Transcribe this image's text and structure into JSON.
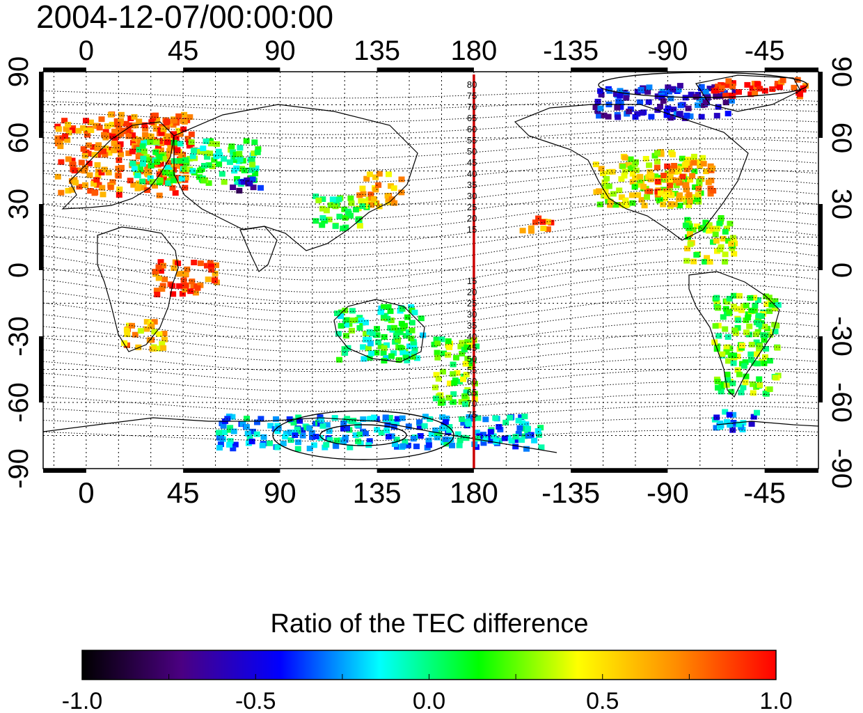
{
  "timestamp": "2004-12-07/00:00:00",
  "map": {
    "x_ticks_top": [
      "0",
      "45",
      "90",
      "135",
      "180",
      "-135",
      "-90",
      "-45"
    ],
    "x_ticks_bottom": [
      "0",
      "45",
      "90",
      "135",
      "180",
      "-135",
      "-90",
      "-45"
    ],
    "y_ticks_left": [
      "90",
      "60",
      "30",
      "0",
      "-30",
      "-60",
      "-90"
    ],
    "y_ticks_right": [
      "90",
      "60",
      "30",
      "0",
      "-30",
      "-60",
      "-90"
    ],
    "meridian_labels_north": [
      "80",
      "75",
      "70",
      "65",
      "60",
      "55",
      "50",
      "45",
      "40",
      "35",
      "30",
      "25",
      "20",
      "15"
    ],
    "meridian_labels_south": [
      "15",
      "20",
      "25",
      "30",
      "35",
      "40",
      "45",
      "50",
      "55",
      "60",
      "65",
      "70",
      "75"
    ],
    "reference_meridian_color": "#cc0000",
    "reference_meridian_lon": 180
  },
  "colorbar": {
    "title": "Ratio of the TEC difference",
    "tick_labels": [
      "-1.0",
      "-0.5",
      "0.0",
      "0.5",
      "1.0"
    ],
    "range": [
      -1.0,
      1.0
    ],
    "colors": [
      "#000000",
      "#4b0082",
      "#0000ff",
      "#00ffff",
      "#00ff00",
      "#ffff00",
      "#ff8c00",
      "#ff0000"
    ]
  },
  "chart_data": {
    "type": "heatmap",
    "x_range": [
      -20,
      340
    ],
    "y_range": [
      -90,
      90
    ],
    "x_tick_values": [
      0,
      45,
      90,
      135,
      180,
      225,
      270,
      315
    ],
    "y_tick_values": [
      90,
      60,
      30,
      0,
      -30,
      -60,
      -90
    ],
    "grid": true,
    "value_range": [
      -1.0,
      1.0
    ],
    "regions": [
      {
        "lon": [
          -15,
          45
        ],
        "lat": [
          35,
          70
        ],
        "value": 0.75
      },
      {
        "lon": [
          10,
          50
        ],
        "lat": [
          55,
          72
        ],
        "value": 0.85
      },
      {
        "lon": [
          20,
          80
        ],
        "lat": [
          40,
          60
        ],
        "value": 0.1
      },
      {
        "lon": [
          65,
          80
        ],
        "lat": [
          37,
          43
        ],
        "value": -0.6
      },
      {
        "lon": [
          125,
          145
        ],
        "lat": [
          30,
          45
        ],
        "value": 0.6
      },
      {
        "lon": [
          105,
          130
        ],
        "lat": [
          20,
          35
        ],
        "value": 0.15
      },
      {
        "lon": [
          15,
          35
        ],
        "lat": [
          -35,
          -22
        ],
        "value": 0.6
      },
      {
        "lon": [
          30,
          60
        ],
        "lat": [
          -10,
          5
        ],
        "value": 0.85
      },
      {
        "lon": [
          115,
          155
        ],
        "lat": [
          -40,
          -15
        ],
        "value": 0.05
      },
      {
        "lon": [
          160,
          180
        ],
        "lat": [
          -60,
          -30
        ],
        "value": 0.2
      },
      {
        "lon": [
          235,
          285
        ],
        "lat": [
          30,
          55
        ],
        "value": 0.4
      },
      {
        "lon": [
          255,
          290
        ],
        "lat": [
          35,
          50
        ],
        "value": 0.7
      },
      {
        "lon": [
          235,
          300
        ],
        "lat": [
          70,
          85
        ],
        "value": -0.5
      },
      {
        "lon": [
          290,
          335
        ],
        "lat": [
          80,
          88
        ],
        "value": 0.9
      },
      {
        "lon": [
          200,
          215
        ],
        "lat": [
          18,
          25
        ],
        "value": 0.75
      },
      {
        "lon": [
          275,
          300
        ],
        "lat": [
          5,
          25
        ],
        "value": 0.3
      },
      {
        "lon": [
          290,
          320
        ],
        "lat": [
          -55,
          -10
        ],
        "value": 0.2
      },
      {
        "lon": [
          60,
          210
        ],
        "lat": [
          -80,
          -65
        ],
        "value": -0.2
      },
      {
        "lon": [
          290,
          310
        ],
        "lat": [
          -72,
          -62
        ],
        "value": -0.3
      }
    ]
  }
}
